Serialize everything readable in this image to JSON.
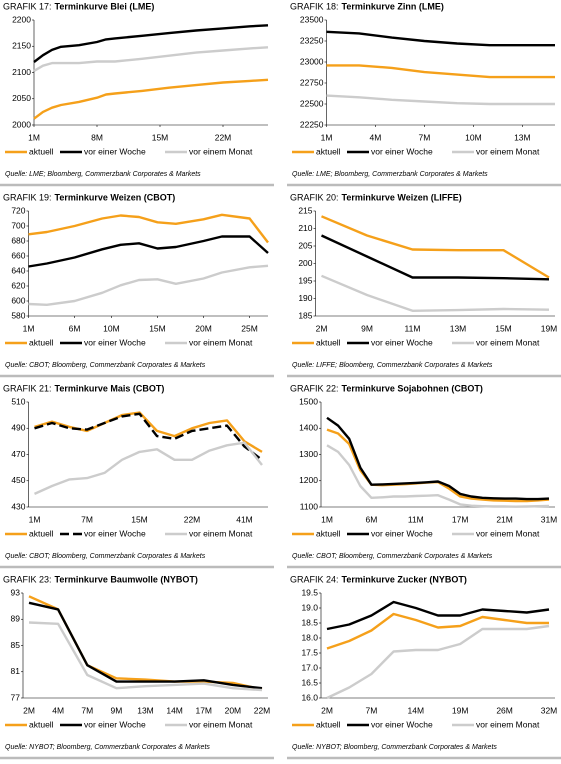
{
  "chart_data": [
    {
      "type": "line",
      "label": "GRAFIK 17:",
      "title": "Terminkurve Blei (LME)",
      "source": "Quelle: LME; Bloomberg, Commerzbank Corporates & Markets",
      "x": [
        1,
        2,
        3,
        4,
        6,
        8,
        9,
        10,
        13,
        16,
        19,
        22,
        25,
        27
      ],
      "xlim": [
        1,
        27
      ],
      "xticks": [
        {
          "value": 1,
          "label": "1M"
        },
        {
          "value": 8,
          "label": "8M"
        },
        {
          "value": 15,
          "label": "15M"
        },
        {
          "value": 22,
          "label": "22M"
        }
      ],
      "ylim": [
        2000,
        2200
      ],
      "yticks": [
        2000,
        2050,
        2100,
        2150,
        2200
      ],
      "series": [
        {
          "name": "aktuell",
          "color": "#f5a01a",
          "values": [
            2012,
            2025,
            2033,
            2038,
            2044,
            2052,
            2058,
            2060,
            2065,
            2071,
            2076,
            2081,
            2084,
            2086
          ]
        },
        {
          "name": "vor einer Woche",
          "color": "#000000",
          "values": [
            2120,
            2133,
            2143,
            2149,
            2152,
            2158,
            2163,
            2165,
            2170,
            2175,
            2180,
            2184,
            2188,
            2190
          ]
        },
        {
          "name": "vor einem Monat",
          "color": "#cccccc",
          "values": [
            2103,
            2113,
            2118,
            2118,
            2118,
            2121,
            2121,
            2121,
            2126,
            2132,
            2138,
            2142,
            2146,
            2148
          ]
        }
      ]
    },
    {
      "type": "line",
      "label": "GRAFIK 18:",
      "title": "Terminkurve Zinn (LME)",
      "source": "Quelle: LME; Bloomberg, Commerzbank Corporates & Markets",
      "x": [
        1,
        3,
        5,
        7,
        9,
        11,
        13,
        15
      ],
      "xlim": [
        1,
        15
      ],
      "xticks": [
        {
          "value": 1,
          "label": "1M"
        },
        {
          "value": 4,
          "label": "4M"
        },
        {
          "value": 7,
          "label": "7M"
        },
        {
          "value": 10,
          "label": "10M"
        },
        {
          "value": 13,
          "label": "13M"
        }
      ],
      "ylim": [
        22250,
        23500
      ],
      "yticks": [
        22250,
        22500,
        22750,
        23000,
        23250,
        23500
      ],
      "series": [
        {
          "name": "aktuell",
          "color": "#f5a01a",
          "values": [
            22960,
            22960,
            22930,
            22880,
            22850,
            22820,
            22820,
            22820
          ]
        },
        {
          "name": "vor einer Woche",
          "color": "#000000",
          "values": [
            23360,
            23340,
            23290,
            23250,
            23220,
            23200,
            23200,
            23200
          ]
        },
        {
          "name": "vor einem Monat",
          "color": "#cccccc",
          "values": [
            22600,
            22580,
            22550,
            22530,
            22510,
            22500,
            22500,
            22500
          ]
        }
      ]
    },
    {
      "type": "line",
      "label": "GRAFIK 19:",
      "title": "Terminkurve Weizen (CBOT)",
      "source": "Quelle: CBOT; Bloomberg, Commerzbank Corporates & Markets",
      "x": [
        1,
        3,
        6,
        9,
        11,
        13,
        15,
        17,
        20,
        22,
        25,
        27
      ],
      "xlim": [
        1,
        27
      ],
      "xticks": [
        {
          "value": 1,
          "label": "1M"
        },
        {
          "value": 6,
          "label": "6M"
        },
        {
          "value": 10,
          "label": "10M"
        },
        {
          "value": 15,
          "label": "15M"
        },
        {
          "value": 20,
          "label": "20M"
        },
        {
          "value": 25,
          "label": "25M"
        }
      ],
      "ylim": [
        580,
        720
      ],
      "yticks": [
        580,
        600,
        620,
        640,
        660,
        680,
        700,
        720
      ],
      "series": [
        {
          "name": "aktuell",
          "color": "#f5a01a",
          "values": [
            689,
            692,
            700,
            710,
            714,
            712,
            705,
            703,
            709,
            715,
            710,
            678
          ]
        },
        {
          "name": "vor einer Woche",
          "color": "#000000",
          "values": [
            646,
            650,
            658,
            669,
            675,
            677,
            670,
            672,
            680,
            686,
            686,
            664
          ]
        },
        {
          "name": "vor einem Monat",
          "color": "#cccccc",
          "values": [
            596,
            595,
            600,
            611,
            621,
            628,
            629,
            623,
            630,
            638,
            645,
            647
          ]
        }
      ]
    },
    {
      "type": "line",
      "label": "GRAFIK 20:",
      "title": "Terminkurve Weizen (LIFFE)",
      "source": "Quelle: LIFFE; Bloomberg, Commerzbank Corporates & Markets",
      "categories": [
        "2M",
        "9M",
        "11M",
        "13M",
        "15M",
        "19M"
      ],
      "ylim": [
        185,
        215
      ],
      "yticks": [
        185,
        190,
        195,
        200,
        205,
        210,
        215
      ],
      "series": [
        {
          "name": "aktuell",
          "color": "#f5a01a",
          "values": [
            213.5,
            208,
            204,
            203.8,
            203.8,
            196
          ]
        },
        {
          "name": "vor einer Woche",
          "color": "#000000",
          "values": [
            208,
            202,
            196,
            196,
            195.8,
            195.5
          ]
        },
        {
          "name": "vor einem Monat",
          "color": "#cccccc",
          "values": [
            196.5,
            191,
            186.5,
            186.7,
            187,
            186.8
          ]
        }
      ]
    },
    {
      "type": "line",
      "label": "GRAFIK 21:",
      "title": "Terminkurve Mais (CBOT)",
      "source": "Quelle: CBOT; Bloomberg, Commerzbank Corporates & Markets",
      "categories": [
        "1M",
        null,
        null,
        "7M",
        null,
        null,
        "15M",
        null,
        null,
        "22M",
        null,
        null,
        "41M",
        null
      ],
      "ylim": [
        430,
        510
      ],
      "yticks": [
        430,
        450,
        470,
        490,
        510
      ],
      "series": [
        {
          "name": "aktuell",
          "color": "#f5a01a",
          "values": [
            491,
            495,
            491,
            488,
            494,
            500,
            502,
            488,
            484,
            490,
            494,
            496,
            480,
            472
          ]
        },
        {
          "name": "vor einer Woche",
          "color": "#000000",
          "dashed": true,
          "values": [
            490,
            494,
            490,
            489,
            494,
            499,
            501,
            484,
            482,
            488,
            490,
            492,
            476,
            466
          ]
        },
        {
          "name": "vor einem Monat",
          "color": "#cccccc",
          "values": [
            440,
            446,
            451,
            452,
            456,
            466,
            472,
            474,
            466,
            466,
            473,
            477,
            479,
            462
          ]
        }
      ]
    },
    {
      "type": "line",
      "label": "GRAFIK 22:",
      "title": "Terminkurve Sojabohnen (CBOT)",
      "source": "Quelle: CBOT; Bloomberg, Commerzbank Corporates & Markets",
      "categories": [
        "1M",
        null,
        null,
        null,
        "6M",
        null,
        null,
        null,
        "11M",
        null,
        null,
        null,
        "17M",
        null,
        null,
        null,
        "21M",
        null,
        null,
        null,
        "31M"
      ],
      "ylim": [
        1100,
        1500
      ],
      "yticks": [
        1100,
        1200,
        1300,
        1400,
        1500
      ],
      "series": [
        {
          "name": "aktuell",
          "color": "#f5a01a",
          "values": [
            1395,
            1380,
            1340,
            1240,
            1185,
            1183,
            1185,
            1187,
            1190,
            1193,
            1195,
            1170,
            1140,
            1132,
            1128,
            1125,
            1124,
            1123,
            1123,
            1125,
            1128
          ]
        },
        {
          "name": "vor einer Woche",
          "color": "#000000",
          "values": [
            1440,
            1410,
            1360,
            1250,
            1185,
            1186,
            1188,
            1190,
            1192,
            1194,
            1197,
            1180,
            1150,
            1140,
            1135,
            1133,
            1132,
            1132,
            1130,
            1130,
            1132
          ]
        },
        {
          "name": "vor einem Monat",
          "color": "#cccccc",
          "values": [
            1335,
            1310,
            1260,
            1180,
            1135,
            1137,
            1140,
            1140,
            1142,
            1143,
            1145,
            1128,
            1110,
            1105,
            1103,
            1102,
            1102,
            1101,
            1102,
            1103,
            1104
          ]
        }
      ]
    },
    {
      "type": "line",
      "label": "GRAFIK 23:",
      "title": "Terminkurve Baumwolle (NYBOT)",
      "source": "Quelle: NYBOT; Bloomberg, Commerzbank Corporates & Markets",
      "categories": [
        "2M",
        "4M",
        "7M",
        "9M",
        "13M",
        "14M",
        "17M",
        "20M",
        "22M"
      ],
      "ylim": [
        77,
        93
      ],
      "yticks": [
        77,
        81,
        85,
        89,
        93
      ],
      "series": [
        {
          "name": "aktuell",
          "color": "#f5a01a",
          "values": [
            92.5,
            90.5,
            82,
            80,
            79.8,
            79.5,
            79.5,
            79.3,
            78.3
          ]
        },
        {
          "name": "vor einer Woche",
          "color": "#000000",
          "values": [
            91.5,
            90.5,
            82,
            79.5,
            79.5,
            79.5,
            79.7,
            79,
            78.5
          ]
        },
        {
          "name": "vor einem Monat",
          "color": "#cccccc",
          "values": [
            88.5,
            88.3,
            80.5,
            78.5,
            78.8,
            79,
            79.2,
            78.5,
            78.2
          ]
        }
      ]
    },
    {
      "type": "line",
      "label": "GRAFIK 24:",
      "title": "Terminkurve Zucker (NYBOT)",
      "source": "Quelle: NYBOT; Bloomberg, Commerzbank Corporates & Markets",
      "categories": [
        "2M",
        null,
        "7M",
        null,
        "14M",
        null,
        "19M",
        null,
        "26M",
        null,
        "32M"
      ],
      "ylim": [
        16,
        19.5
      ],
      "yticks": [
        {
          "value": 16,
          "label": "16.0"
        },
        {
          "value": 16.5,
          "label": "16.5"
        },
        {
          "value": 17,
          "label": "17.0"
        },
        {
          "value": 17.5,
          "label": "17.5"
        },
        {
          "value": 18,
          "label": "18.0"
        },
        {
          "value": 18.5,
          "label": "18.5"
        },
        {
          "value": 19,
          "label": "19.0"
        },
        {
          "value": 19.5,
          "label": "19.5"
        }
      ],
      "series": [
        {
          "name": "aktuell",
          "color": "#f5a01a",
          "values": [
            17.65,
            17.9,
            18.25,
            18.8,
            18.6,
            18.35,
            18.4,
            18.7,
            18.6,
            18.5,
            18.5
          ]
        },
        {
          "name": "vor einer Woche",
          "color": "#000000",
          "values": [
            18.3,
            18.45,
            18.75,
            19.2,
            19,
            18.75,
            18.75,
            18.95,
            18.9,
            18.85,
            18.95
          ]
        },
        {
          "name": "vor einem Monat",
          "color": "#cccccc",
          "values": [
            16,
            16.35,
            16.8,
            17.55,
            17.6,
            17.6,
            17.8,
            18.3,
            18.3,
            18.3,
            18.4
          ]
        }
      ]
    }
  ]
}
